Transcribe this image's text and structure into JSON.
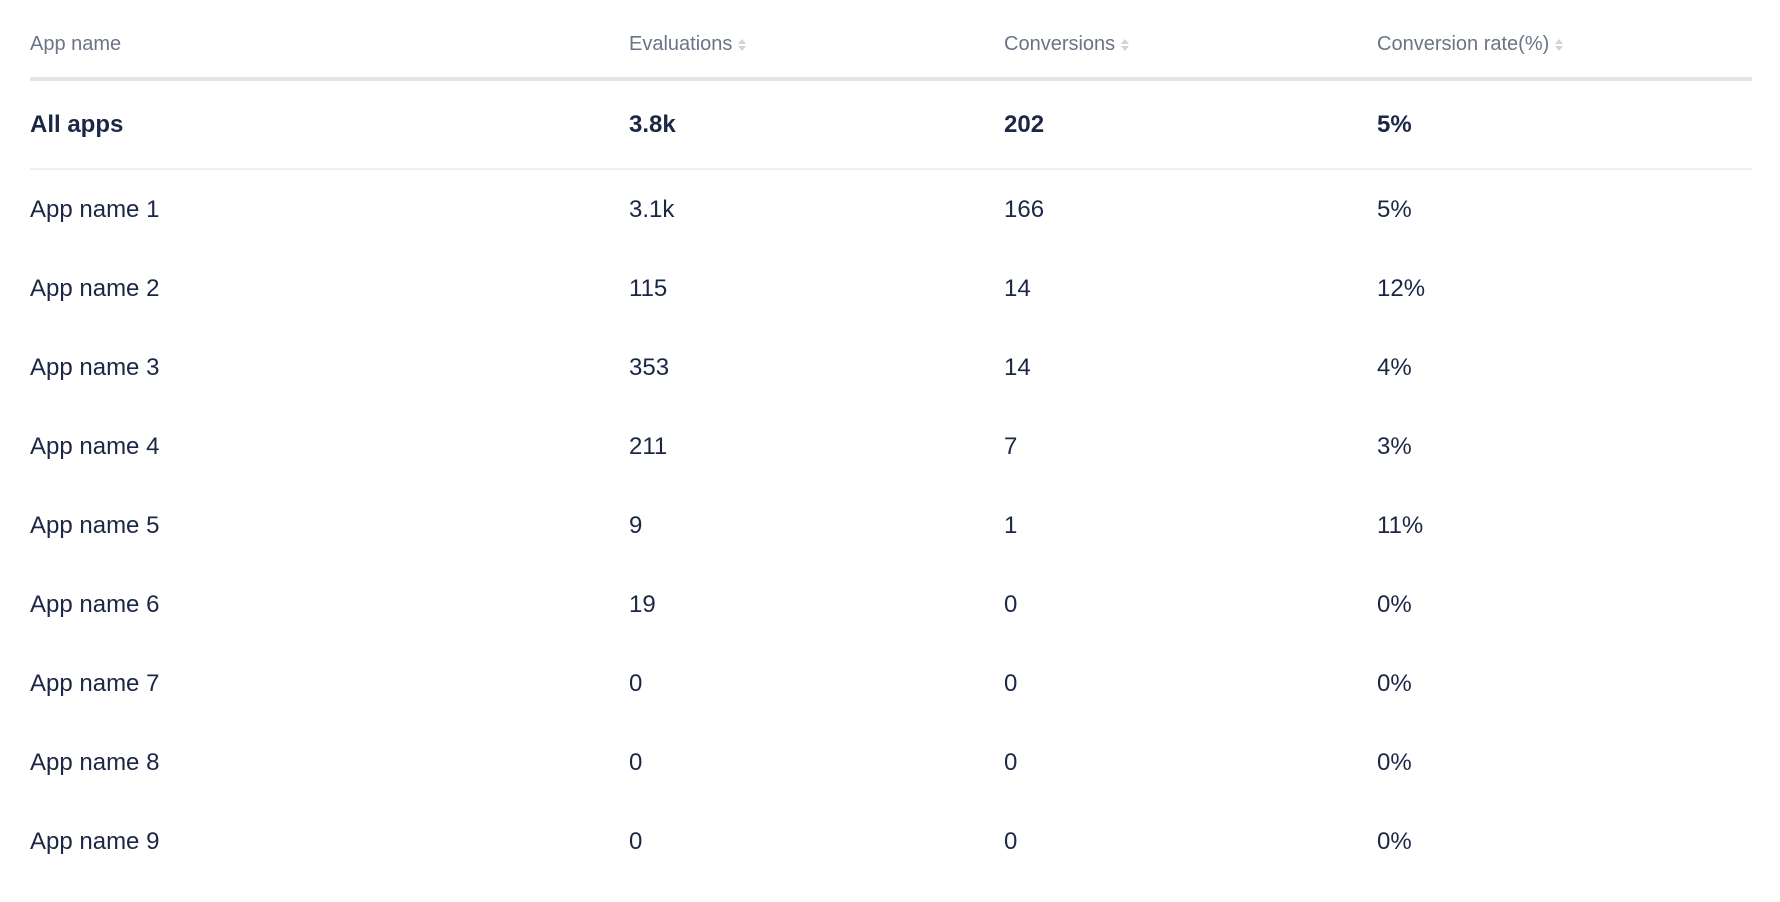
{
  "columns": [
    "App name",
    "Evaluations",
    "Conversions",
    "Conversion rate(%)"
  ],
  "sortable": [
    false,
    true,
    true,
    true
  ],
  "total": {
    "name": "All apps",
    "evaluations": "3.8k",
    "conversions": "202",
    "rate": "5%"
  },
  "rows": [
    {
      "name": "App name 1",
      "evaluations": "3.1k",
      "conversions": "166",
      "rate": "5%"
    },
    {
      "name": "App name 2",
      "evaluations": "115",
      "conversions": "14",
      "rate": "12%"
    },
    {
      "name": "App name 3",
      "evaluations": "353",
      "conversions": "14",
      "rate": "4%"
    },
    {
      "name": "App name 4",
      "evaluations": "211",
      "conversions": "7",
      "rate": "3%"
    },
    {
      "name": "App name 5",
      "evaluations": "9",
      "conversions": "1",
      "rate": "11%"
    },
    {
      "name": "App name 6",
      "evaluations": "19",
      "conversions": "0",
      "rate": "0%"
    },
    {
      "name": "App name 7",
      "evaluations": "0",
      "conversions": "0",
      "rate": "0%"
    },
    {
      "name": "App name 8",
      "evaluations": "0",
      "conversions": "0",
      "rate": "0%"
    },
    {
      "name": "App name 9",
      "evaluations": "0",
      "conversions": "0",
      "rate": "0%"
    }
  ]
}
